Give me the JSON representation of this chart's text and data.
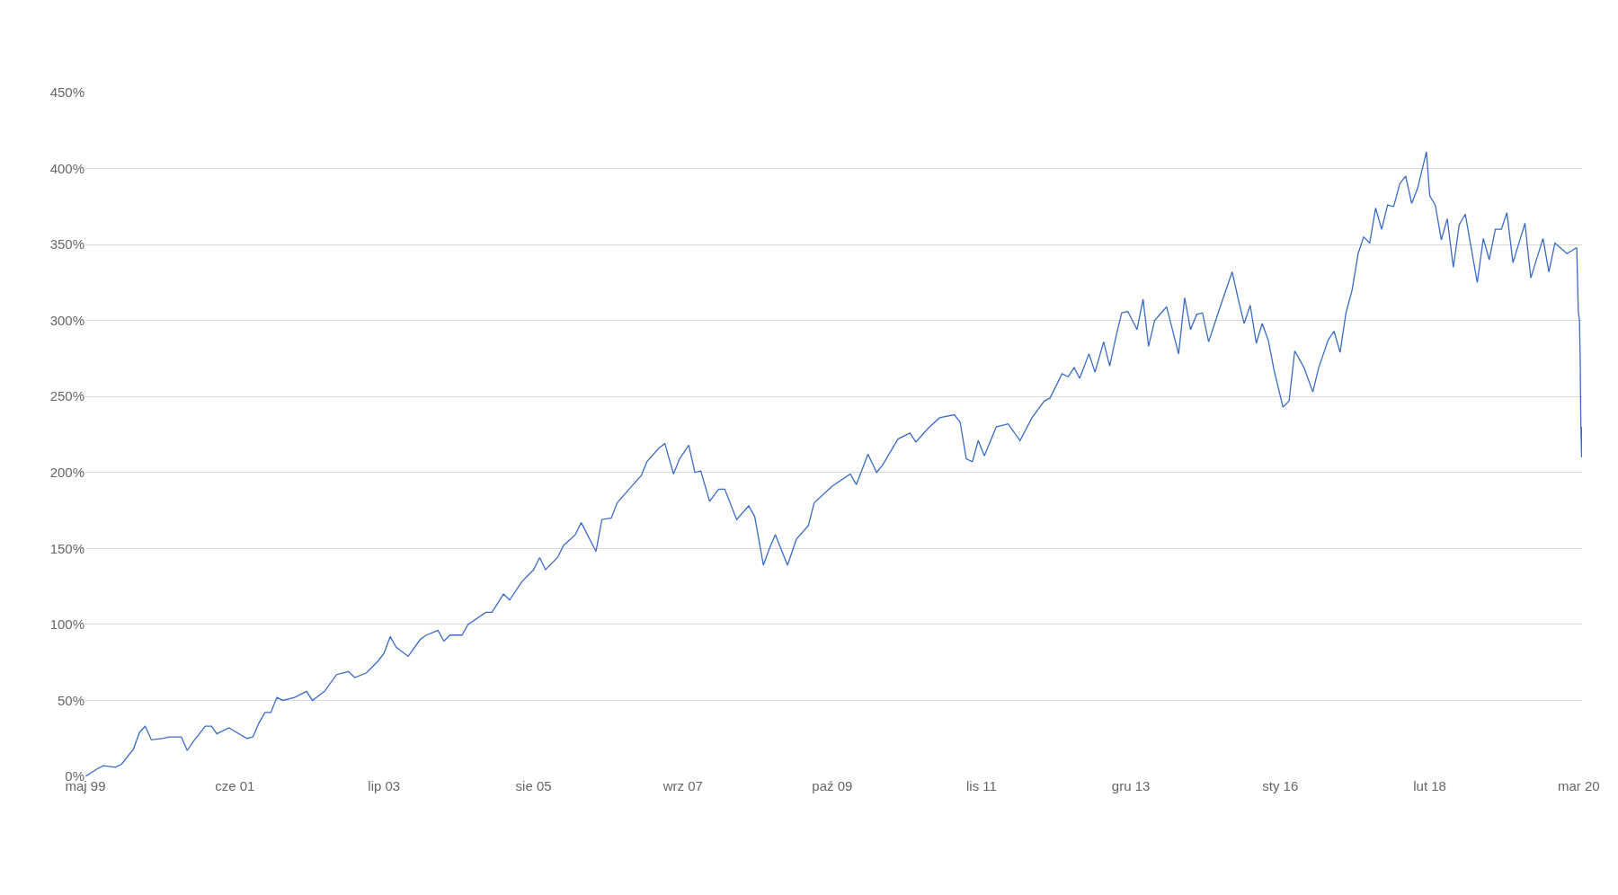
{
  "chart_data": {
    "type": "line",
    "color": "#3a6bc9",
    "grid": "y",
    "marker": "none",
    "line_style": "solid",
    "x": [
      "1999-05-01",
      "1999-07-01",
      "1999-08-01",
      "1999-10-01",
      "1999-11-01",
      "2000-01-01",
      "2000-02-01",
      "2000-03-01",
      "2000-04-01",
      "2000-06-01",
      "2000-07-01",
      "2000-09-01",
      "2000-10-01",
      "2000-11-01",
      "2001-01-01",
      "2001-02-01",
      "2001-03-01",
      "2001-05-01",
      "2001-08-01",
      "2001-09-01",
      "2001-10-01",
      "2001-11-01",
      "2001-12-01",
      "2002-01-01",
      "2002-02-01",
      "2002-04-01",
      "2002-06-01",
      "2002-07-01",
      "2002-09-01",
      "2002-11-01",
      "2003-01-01",
      "2003-02-01",
      "2003-04-01",
      "2003-06-01",
      "2003-07-01",
      "2003-08-01",
      "2003-09-01",
      "2003-11-01",
      "2004-01-01",
      "2004-02-01",
      "2004-04-01",
      "2004-05-01",
      "2004-06-01",
      "2004-08-01",
      "2004-09-01",
      "2004-12-01",
      "2005-01-01",
      "2005-03-01",
      "2005-04-01",
      "2005-06-01",
      "2005-08-01",
      "2005-09-01",
      "2005-10-01",
      "2005-12-01",
      "2006-01-01",
      "2006-03-01",
      "2006-04-01",
      "2006-06-15",
      "2006-07-15",
      "2006-09-01",
      "2006-10-01",
      "2006-12-01",
      "2007-02-01",
      "2007-03-01",
      "2007-05-01",
      "2007-06-01",
      "2007-07-15",
      "2007-08-15",
      "2007-10-01",
      "2007-11-01",
      "2007-12-01",
      "2008-01-15",
      "2008-03-01",
      "2008-04-01",
      "2008-06-01",
      "2008-08-01",
      "2008-09-01",
      "2008-10-15",
      "2008-11-15",
      "2008-12-15",
      "2009-02-15",
      "2009-04-01",
      "2009-06-01",
      "2009-07-01",
      "2009-10-01",
      "2010-01-01",
      "2010-02-01",
      "2010-04-01",
      "2010-05-15",
      "2010-06-15",
      "2010-09-01",
      "2010-11-01",
      "2010-12-01",
      "2011-02-01",
      "2011-04-01",
      "2011-06-15",
      "2011-07-15",
      "2011-08-15",
      "2011-09-15",
      "2011-10-15",
      "2011-11-15",
      "2012-01-15",
      "2012-03-15",
      "2012-05-15",
      "2012-07-15",
      "2012-09-15",
      "2012-10-15",
      "2012-12-15",
      "2013-01-15",
      "2013-02-15",
      "2013-03-15",
      "2013-05-01",
      "2013-06-01",
      "2013-07-15",
      "2013-08-15",
      "2013-09-15",
      "2013-10-15",
      "2013-11-15",
      "2014-01-01",
      "2014-02-01",
      "2014-03-01",
      "2014-04-01",
      "2014-06-01",
      "2014-08-01",
      "2014-09-01",
      "2014-10-01",
      "2014-11-01",
      "2014-12-01",
      "2015-01-01",
      "2015-02-01",
      "2015-03-01",
      "2015-05-01",
      "2015-06-01",
      "2015-07-01",
      "2015-08-01",
      "2015-09-01",
      "2015-10-01",
      "2015-11-01",
      "2015-12-01",
      "2016-01-15",
      "2016-02-15",
      "2016-03-15",
      "2016-05-01",
      "2016-06-15",
      "2016-07-15",
      "2016-09-01",
      "2016-10-01",
      "2016-11-01",
      "2016-12-01",
      "2017-01-01",
      "2017-02-01",
      "2017-03-01",
      "2017-04-01",
      "2017-05-01",
      "2017-06-01",
      "2017-07-01",
      "2017-08-01",
      "2017-09-01",
      "2017-10-01",
      "2017-11-01",
      "2017-12-01",
      "2018-01-15",
      "2018-02-01",
      "2018-03-01",
      "2018-04-01",
      "2018-05-01",
      "2018-06-01",
      "2018-07-01",
      "2018-08-01",
      "2018-10-01",
      "2018-11-01",
      "2018-12-01",
      "2019-01-01",
      "2019-02-01",
      "2019-03-01",
      "2019-04-01",
      "2019-06-01",
      "2019-07-01",
      "2019-09-01",
      "2019-10-01",
      "2019-11-01",
      "2020-01-01",
      "2020-02-20",
      "2020-02-28",
      "2020-03-05",
      "2020-03-09",
      "2020-03-12",
      "2020-03-16",
      "2020-03-18"
    ],
    "values": [
      0,
      5,
      7,
      6,
      8,
      18,
      29,
      33,
      24,
      25,
      26,
      26,
      17,
      23,
      33,
      33,
      28,
      32,
      25,
      26,
      35,
      42,
      42,
      52,
      50,
      52,
      56,
      50,
      56,
      67,
      69,
      65,
      68,
      76,
      81,
      92,
      85,
      79,
      90,
      93,
      96,
      89,
      93,
      93,
      100,
      108,
      108,
      120,
      116,
      128,
      136,
      144,
      136,
      144,
      152,
      159,
      167,
      148,
      169,
      170,
      180,
      189,
      198,
      207,
      216,
      219,
      199,
      209,
      218,
      200,
      201,
      181,
      189,
      189,
      169,
      178,
      171,
      139,
      150,
      159,
      139,
      156,
      165,
      180,
      191,
      199,
      192,
      212,
      200,
      205,
      222,
      226,
      220,
      229,
      236,
      238,
      233,
      209,
      207,
      221,
      211,
      230,
      232,
      221,
      236,
      247,
      249,
      265,
      263,
      269,
      262,
      278,
      266,
      286,
      270,
      289,
      305,
      306,
      294,
      314,
      283,
      300,
      309,
      278,
      315,
      294,
      304,
      305,
      286,
      298,
      309,
      332,
      314,
      298,
      310,
      285,
      298,
      287,
      267,
      243,
      247,
      280,
      269,
      253,
      269,
      287,
      293,
      279,
      305,
      320,
      344,
      355,
      351,
      374,
      360,
      376,
      375,
      390,
      395,
      377,
      387,
      411,
      382,
      376,
      353,
      367,
      335,
      363,
      370,
      325,
      354,
      340,
      360,
      360,
      371,
      338,
      364,
      328,
      354,
      332,
      351,
      344,
      348,
      306,
      300,
      270,
      230,
      210,
      230
    ],
    "xlim": [
      "1999-05-01",
      "2020-03-18"
    ],
    "xticks": [
      {
        "value": "1999-05-01",
        "label": "maj 99"
      },
      {
        "value": "2001-06-01",
        "label": "cze 01"
      },
      {
        "value": "2003-07-01",
        "label": "lip 03"
      },
      {
        "value": "2005-08-01",
        "label": "sie 05"
      },
      {
        "value": "2007-09-01",
        "label": "wrz 07"
      },
      {
        "value": "2009-10-01",
        "label": "paź 09"
      },
      {
        "value": "2011-11-01",
        "label": "lis 11"
      },
      {
        "value": "2013-12-01",
        "label": "gru 13"
      },
      {
        "value": "2016-01-01",
        "label": "sty 16"
      },
      {
        "value": "2018-02-01",
        "label": "lut 18"
      },
      {
        "value": "2020-03-01",
        "label": "mar 20"
      }
    ],
    "ylim": [
      0,
      450
    ],
    "yticks": [
      {
        "value": 0,
        "label": "0%"
      },
      {
        "value": 50,
        "label": "50%"
      },
      {
        "value": 100,
        "label": "100%"
      },
      {
        "value": 150,
        "label": "150%"
      },
      {
        "value": 200,
        "label": "200%"
      },
      {
        "value": 250,
        "label": "250%"
      },
      {
        "value": 300,
        "label": "300%"
      },
      {
        "value": 350,
        "label": "350%"
      },
      {
        "value": 400,
        "label": "400%"
      },
      {
        "value": 450,
        "label": "450%"
      }
    ]
  }
}
